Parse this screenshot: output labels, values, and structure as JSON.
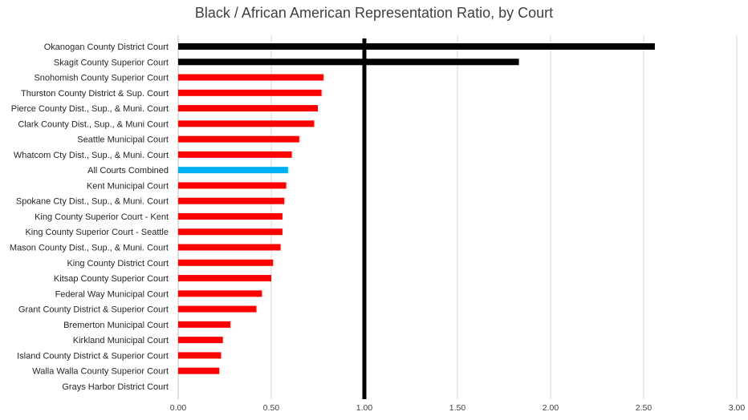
{
  "chart_data": {
    "type": "bar",
    "orientation": "horizontal",
    "title": "Black / African American Representation Ratio, by Court",
    "categories": [
      "Okanogan County District Court",
      "Skagit County Superior Court",
      "Snohomish County Superior Court",
      "Thurston County District & Sup. Court",
      "Pierce County Dist., Sup., & Muni. Court",
      "Clark County Dist., Sup., & Muni Court",
      "Seattle Municipal Court",
      "Whatcom Cty Dist., Sup., & Muni. Court",
      "All Courts Combined",
      "Kent Municipal Court",
      "Spokane Cty Dist., Sup., & Muni. Court",
      "King County Superior Court - Kent",
      "King County Superior Court - Seattle",
      "Mason County Dist., Sup., & Muni. Court",
      "King County District Court",
      "Kitsap County Superior Court",
      "Federal Way Municipal Court",
      "Grant County District & Superior Court",
      "Bremerton Municipal Court",
      "Kirkland Municipal Court",
      "Island County District & Superior Court",
      "Walla Walla County Superior Court",
      "Grays Harbor District Court"
    ],
    "values": [
      2.56,
      1.83,
      0.78,
      0.77,
      0.75,
      0.73,
      0.65,
      0.61,
      0.59,
      0.58,
      0.57,
      0.56,
      0.56,
      0.55,
      0.51,
      0.5,
      0.45,
      0.42,
      0.28,
      0.24,
      0.23,
      0.22,
      0.0
    ],
    "bar_colors": [
      "#000000",
      "#000000",
      "#ff0000",
      "#ff0000",
      "#ff0000",
      "#ff0000",
      "#ff0000",
      "#ff0000",
      "#00b0f0",
      "#ff0000",
      "#ff0000",
      "#ff0000",
      "#ff0000",
      "#ff0000",
      "#ff0000",
      "#ff0000",
      "#ff0000",
      "#ff0000",
      "#ff0000",
      "#ff0000",
      "#ff0000",
      "#ff0000",
      "#ff0000"
    ],
    "xlim": [
      0,
      3
    ],
    "xticks": [
      0,
      0.5,
      1,
      1.5,
      2,
      2.5,
      3
    ],
    "xtick_labels": [
      "0.00",
      "0.50",
      "1.00",
      "1.50",
      "2.00",
      "2.50",
      "3.00"
    ],
    "reference_line": 1.0,
    "reference_line_color": "#000000",
    "grid": "vertical",
    "grid_color": "#d9d9d9",
    "xlabel": "",
    "ylabel": ""
  }
}
